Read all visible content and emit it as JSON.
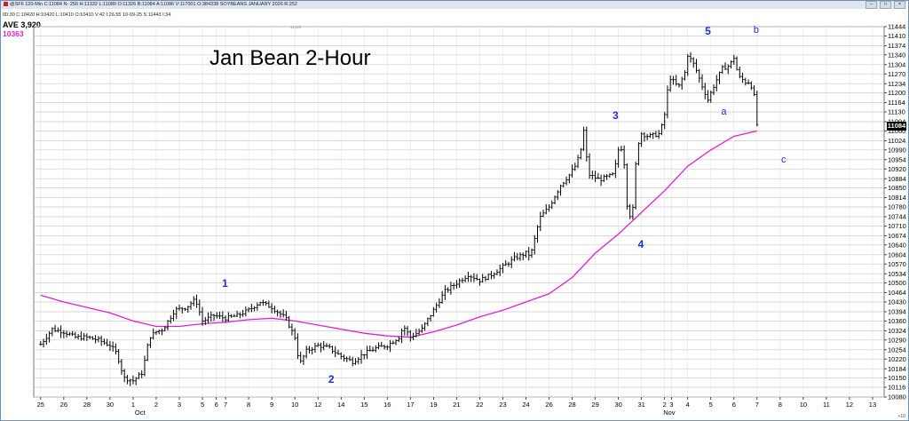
{
  "window": {
    "status_text": "@SF6 120-Min C:11084 N- 256 H:11332 L:11080 O:11326 B:11084 A:11086 V:117001 O:384338 SOYBEANS JANUARY 2026 R:252",
    "quote_line": "00:30 C:10420 H:10420 L:10410 O:10410 V:42 I:26.55 10-09-25 S:11443 I:34",
    "study_label": "AVE 3,920",
    "study_value": "10363",
    "top_marker": "11443",
    "corner_text": "+10"
  },
  "chart_data": {
    "type": "ohlc",
    "title": "Jan Bean 2-Hour",
    "y_ticks": [
      10080,
      10116,
      10150,
      10184,
      10220,
      10254,
      10290,
      10324,
      10360,
      10394,
      10430,
      10464,
      10500,
      10534,
      10570,
      10604,
      10640,
      10674,
      10710,
      10744,
      10780,
      10814,
      10850,
      10884,
      10920,
      10954,
      10990,
      11024,
      11060,
      11094,
      11130,
      11164,
      11200,
      11234,
      11270,
      11304,
      11340,
      11374,
      11410,
      11444
    ],
    "ylim": [
      10080,
      11444
    ],
    "last_price": "11084",
    "x_ticks": [
      {
        "label": "25",
        "day": 0
      },
      {
        "label": "26",
        "day": 1
      },
      {
        "label": "28",
        "day": 2
      },
      {
        "label": "30",
        "day": 3
      },
      {
        "label": "1",
        "day": 4
      },
      {
        "label": "2",
        "day": 5
      },
      {
        "label": "3",
        "day": 6
      },
      {
        "label": "5",
        "day": 7
      },
      {
        "label": "6",
        "day": 7.6
      },
      {
        "label": "7",
        "day": 8
      },
      {
        "label": "8",
        "day": 9
      },
      {
        "label": "9",
        "day": 10
      },
      {
        "label": "10",
        "day": 11
      },
      {
        "label": "12",
        "day": 12
      },
      {
        "label": "14",
        "day": 13
      },
      {
        "label": "15",
        "day": 14
      },
      {
        "label": "16",
        "day": 15
      },
      {
        "label": "17",
        "day": 16
      },
      {
        "label": "19",
        "day": 17
      },
      {
        "label": "21",
        "day": 18
      },
      {
        "label": "22",
        "day": 19
      },
      {
        "label": "23",
        "day": 20
      },
      {
        "label": "24",
        "day": 21
      },
      {
        "label": "26",
        "day": 22
      },
      {
        "label": "28",
        "day": 23
      },
      {
        "label": "29",
        "day": 24
      },
      {
        "label": "30",
        "day": 25
      },
      {
        "label": "31",
        "day": 26
      },
      {
        "label": "2",
        "day": 27
      },
      {
        "label": "3",
        "day": 27.3
      },
      {
        "label": "4",
        "day": 28
      },
      {
        "label": "5",
        "day": 29
      },
      {
        "label": "6",
        "day": 30
      },
      {
        "label": "7",
        "day": 31
      },
      {
        "label": "8",
        "day": 32
      },
      {
        "label": "10",
        "day": 33
      },
      {
        "label": "11",
        "day": 34
      },
      {
        "label": "12",
        "day": 35
      },
      {
        "label": "13",
        "day": 36
      }
    ],
    "month_labels": [
      {
        "label": "Oct",
        "day": 4.3
      },
      {
        "label": "Nov",
        "day": 27.2
      }
    ],
    "price_path": [
      [
        0,
        10274
      ],
      [
        0.5,
        10330
      ],
      [
        1,
        10320
      ],
      [
        1.5,
        10300
      ],
      [
        2,
        10300
      ],
      [
        2.5,
        10290
      ],
      [
        3,
        10270
      ],
      [
        3.3,
        10240
      ],
      [
        3.6,
        10150
      ],
      [
        4,
        10140
      ],
      [
        4.4,
        10170
      ],
      [
        4.7,
        10300
      ],
      [
        5,
        10320
      ],
      [
        5.3,
        10330
      ],
      [
        5.8,
        10400
      ],
      [
        6.3,
        10410
      ],
      [
        6.7,
        10440
      ],
      [
        7,
        10360
      ],
      [
        7.5,
        10380
      ],
      [
        8,
        10370
      ],
      [
        8.5,
        10380
      ],
      [
        9,
        10400
      ],
      [
        9.5,
        10430
      ],
      [
        10,
        10410
      ],
      [
        10.3,
        10390
      ],
      [
        10.6,
        10370
      ],
      [
        11,
        10300
      ],
      [
        11.2,
        10200
      ],
      [
        11.5,
        10250
      ],
      [
        12,
        10270
      ],
      [
        12.5,
        10260
      ],
      [
        13,
        10230
      ],
      [
        13.5,
        10210
      ],
      [
        14,
        10240
      ],
      [
        14.5,
        10260
      ],
      [
        15,
        10270
      ],
      [
        15.5,
        10300
      ],
      [
        15.7,
        10340
      ],
      [
        16,
        10300
      ],
      [
        16.5,
        10330
      ],
      [
        17,
        10400
      ],
      [
        17.5,
        10470
      ],
      [
        18,
        10500
      ],
      [
        18.5,
        10530
      ],
      [
        19,
        10510
      ],
      [
        19.5,
        10530
      ],
      [
        20,
        10560
      ],
      [
        20.5,
        10590
      ],
      [
        21,
        10610
      ],
      [
        21.2,
        10600
      ],
      [
        21.6,
        10740
      ],
      [
        22,
        10780
      ],
      [
        22.5,
        10860
      ],
      [
        22.9,
        10900
      ],
      [
        23.2,
        10940
      ],
      [
        23.4,
        11000
      ],
      [
        23.5,
        11060
      ],
      [
        23.7,
        10900
      ],
      [
        24.2,
        10880
      ],
      [
        24.8,
        10900
      ],
      [
        25,
        10990
      ],
      [
        25.2,
        11000
      ],
      [
        25.4,
        10760
      ],
      [
        25.6,
        10740
      ],
      [
        25.8,
        11000
      ],
      [
        26,
        11050
      ],
      [
        26.3,
        11040
      ],
      [
        26.8,
        11050
      ],
      [
        27,
        11120
      ],
      [
        27.2,
        11260
      ],
      [
        27.6,
        11220
      ],
      [
        27.9,
        11280
      ],
      [
        28,
        11340
      ],
      [
        28.3,
        11300
      ],
      [
        28.6,
        11230
      ],
      [
        28.9,
        11170
      ],
      [
        29,
        11200
      ],
      [
        29.2,
        11240
      ],
      [
        29.5,
        11290
      ],
      [
        29.8,
        11300
      ],
      [
        30,
        11330
      ],
      [
        30.2,
        11260
      ],
      [
        30.5,
        11240
      ],
      [
        30.7,
        11240
      ],
      [
        30.9,
        11180
      ],
      [
        31,
        11084
      ]
    ],
    "moving_average": [
      [
        0,
        10455
      ],
      [
        1,
        10430
      ],
      [
        2,
        10410
      ],
      [
        3,
        10390
      ],
      [
        4,
        10360
      ],
      [
        5,
        10340
      ],
      [
        6,
        10340
      ],
      [
        7,
        10350
      ],
      [
        8,
        10355
      ],
      [
        9,
        10365
      ],
      [
        10,
        10370
      ],
      [
        11,
        10360
      ],
      [
        12,
        10345
      ],
      [
        13,
        10330
      ],
      [
        14,
        10315
      ],
      [
        15,
        10305
      ],
      [
        16,
        10300
      ],
      [
        17,
        10320
      ],
      [
        18,
        10345
      ],
      [
        19,
        10375
      ],
      [
        20,
        10400
      ],
      [
        21,
        10430
      ],
      [
        22,
        10460
      ],
      [
        23,
        10520
      ],
      [
        24,
        10610
      ],
      [
        25,
        10680
      ],
      [
        26,
        10760
      ],
      [
        27,
        10840
      ],
      [
        28,
        10930
      ],
      [
        29,
        10990
      ],
      [
        30,
        11040
      ],
      [
        31,
        11060
      ]
    ],
    "annotations": [
      {
        "text": "1",
        "day": 8.0,
        "price": 10495
      },
      {
        "text": "2",
        "day": 12.6,
        "price": 10142
      },
      {
        "text": "3",
        "day": 24.9,
        "price": 11115
      },
      {
        "text": "4",
        "day": 26.0,
        "price": 10640
      },
      {
        "text": "5",
        "day": 28.9,
        "price": 11423
      },
      {
        "text": "a",
        "day": 29.6,
        "price": 11125
      },
      {
        "text": "b",
        "day": 31.0,
        "price": 11423
      },
      {
        "text": "c",
        "day": 32.2,
        "price": 10946
      }
    ],
    "colors": {
      "bars": "#000000",
      "moving_average": "#e020d0",
      "annotations": "#1f2fd0",
      "grid": "#c8c8c8"
    }
  }
}
